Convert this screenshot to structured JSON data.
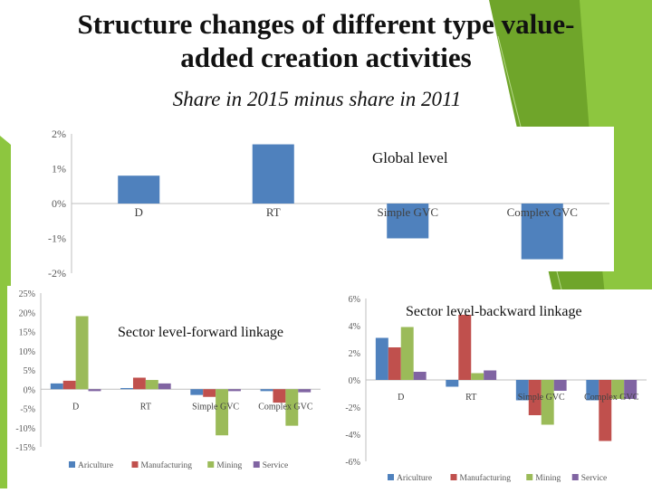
{
  "slide": {
    "title_line1": "Structure changes of different type value-",
    "title_line2": "added creation activities",
    "subtitle": "Share in 2015 minus share in 2011"
  },
  "colors": {
    "green_accent": "#8dc63f",
    "green_dark": "#6fa52a",
    "agriculture": "#4f81bd",
    "manufacturing": "#c0504d",
    "mining": "#9bbb59",
    "service": "#8064a2"
  },
  "chart_data": [
    {
      "type": "bar",
      "title": "Global level",
      "categories": [
        "D",
        "RT",
        "Simple GVC",
        "Complex GVC"
      ],
      "values": [
        0.8,
        1.7,
        -1.0,
        -1.6
      ],
      "yticks": [
        "2%",
        "1%",
        "0%",
        "-1%",
        "-2%"
      ],
      "ylim": [
        -2,
        2
      ],
      "unit": "%"
    },
    {
      "type": "bar",
      "title": "Sector level-forward linkage",
      "categories": [
        "D",
        "RT",
        "Simple GVC",
        "Complex GVC"
      ],
      "series": [
        {
          "name": "Ariculture",
          "values": [
            1.5,
            0.3,
            -1.5,
            -0.5
          ]
        },
        {
          "name": "Manufacturing",
          "values": [
            2.2,
            3.0,
            -2.0,
            -3.5
          ]
        },
        {
          "name": "Mining",
          "values": [
            19.0,
            2.4,
            -12.0,
            -9.5
          ]
        },
        {
          "name": "Service",
          "values": [
            -0.5,
            1.5,
            -0.5,
            -0.8
          ]
        }
      ],
      "yticks": [
        "25%",
        "20%",
        "15%",
        "10%",
        "5%",
        "0%",
        "-5%",
        "-10%",
        "-15%"
      ],
      "ylim": [
        -15,
        25
      ],
      "unit": "%"
    },
    {
      "type": "bar",
      "title": "Sector level-backward linkage",
      "categories": [
        "D",
        "RT",
        "Simple GVC",
        "Complex GVC"
      ],
      "series": [
        {
          "name": "Ariculture",
          "values": [
            3.1,
            -0.5,
            -1.5,
            -1.5
          ]
        },
        {
          "name": "Manufacturing",
          "values": [
            2.4,
            4.8,
            -2.6,
            -4.5
          ]
        },
        {
          "name": "Mining",
          "values": [
            3.9,
            0.5,
            -3.3,
            -1.4
          ]
        },
        {
          "name": "Service",
          "values": [
            0.6,
            0.7,
            -0.8,
            -1.4
          ]
        }
      ],
      "yticks": [
        "6%",
        "4%",
        "2%",
        "0%",
        "-2%",
        "-4%",
        "-6%"
      ],
      "ylim": [
        -6,
        6
      ],
      "unit": "%"
    }
  ]
}
